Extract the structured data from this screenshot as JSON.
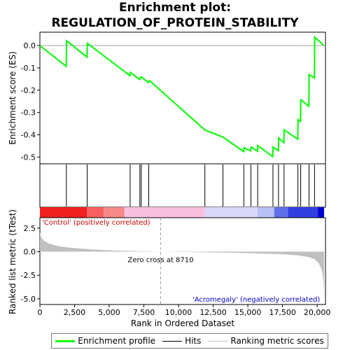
{
  "title_line1": "Enrichment plot:",
  "title_line2": "REGULATION_OF_PROTEIN_STABILITY",
  "colors": {
    "enrichment": "#00ff00",
    "hits": "#000000",
    "ranking": "#c0c0c0",
    "pos_label": "#cc0000",
    "neg_label": "#0000cc",
    "zero_line": "#a0a0a0"
  },
  "legend": [
    {
      "label": "Enrichment profile",
      "color": "#00ff00"
    },
    {
      "label": "Hits",
      "color": "#000000"
    },
    {
      "label": "Ranking metric scores",
      "color": "#c0c0c0"
    }
  ],
  "chart_data": [
    {
      "type": "line",
      "ylabel": "Enrichment score (ES)",
      "ylim": [
        -0.53,
        0.06
      ],
      "yticks": [
        0.0,
        -0.1,
        -0.2,
        -0.3,
        -0.4,
        -0.5
      ],
      "ytick_labels": [
        "0.0",
        "-0.1",
        "-0.2",
        "-0.3",
        "-0.4",
        "-0.5"
      ],
      "xlim": [
        0,
        20600
      ],
      "points": [
        [
          0,
          0.0
        ],
        [
          1900,
          -0.093
        ],
        [
          1920,
          0.022
        ],
        [
          3400,
          -0.052
        ],
        [
          3420,
          0.01
        ],
        [
          6500,
          -0.135
        ],
        [
          6520,
          -0.12
        ],
        [
          7200,
          -0.152
        ],
        [
          7300,
          -0.14
        ],
        [
          7800,
          -0.165
        ],
        [
          7900,
          -0.157
        ],
        [
          11900,
          -0.378
        ],
        [
          13200,
          -0.41
        ],
        [
          14700,
          -0.475
        ],
        [
          14720,
          -0.458
        ],
        [
          15200,
          -0.472
        ],
        [
          15250,
          -0.455
        ],
        [
          15700,
          -0.474
        ],
        [
          15720,
          -0.448
        ],
        [
          16800,
          -0.498
        ],
        [
          16820,
          -0.455
        ],
        [
          17200,
          -0.47
        ],
        [
          17220,
          -0.415
        ],
        [
          17600,
          -0.435
        ],
        [
          17620,
          -0.378
        ],
        [
          18600,
          -0.42
        ],
        [
          18620,
          -0.332
        ],
        [
          18800,
          -0.34
        ],
        [
          18820,
          -0.243
        ],
        [
          19400,
          -0.272
        ],
        [
          19420,
          -0.13
        ],
        [
          19800,
          -0.145
        ],
        [
          19820,
          0.038
        ],
        [
          20500,
          0.0
        ]
      ]
    },
    {
      "type": "hits",
      "positions": [
        1910,
        3410,
        6510,
        7210,
        7310,
        7850,
        11900,
        13200,
        14710,
        15220,
        15710,
        16810,
        17210,
        17610,
        18610,
        18810,
        19410,
        19810
      ]
    },
    {
      "type": "area",
      "xlabel": "Rank in Ordered Dataset",
      "ylabel": "Ranked list metric (tTest)",
      "ylim": [
        -5.6,
        3.6
      ],
      "yticks": [
        2.5,
        0.0,
        -2.5,
        -5.0
      ],
      "ytick_labels": [
        "2.5",
        "0.0",
        "-2.5",
        "-5.0"
      ],
      "xticks": [
        0,
        2500,
        5000,
        7500,
        10000,
        12500,
        15000,
        17500,
        20000
      ],
      "xtick_labels": [
        "0",
        "2,500",
        "5,000",
        "7,500",
        "10,000",
        "12,500",
        "15,000",
        "17,500",
        "20,000"
      ],
      "zero_cross": 8710,
      "zero_cross_label": "Zero cross at 8710",
      "pos_label": "'Control' (positively correlated)",
      "neg_label": "'Acromegaly' (negatively correlated)",
      "curve": [
        [
          0,
          2.0
        ],
        [
          100,
          1.5
        ],
        [
          300,
          1.15
        ],
        [
          600,
          0.9
        ],
        [
          1000,
          0.7
        ],
        [
          1500,
          0.55
        ],
        [
          2000,
          0.45
        ],
        [
          3000,
          0.32
        ],
        [
          4000,
          0.22
        ],
        [
          5000,
          0.15
        ],
        [
          6000,
          0.1
        ],
        [
          7000,
          0.06
        ],
        [
          8000,
          0.02
        ],
        [
          8710,
          0.0
        ],
        [
          10000,
          -0.03
        ],
        [
          12000,
          -0.07
        ],
        [
          14000,
          -0.12
        ],
        [
          16000,
          -0.2
        ],
        [
          17500,
          -0.28
        ],
        [
          18500,
          -0.38
        ],
        [
          19300,
          -0.55
        ],
        [
          19800,
          -0.8
        ],
        [
          20100,
          -1.2
        ],
        [
          20300,
          -1.8
        ],
        [
          20420,
          -2.6
        ],
        [
          20480,
          -3.6
        ],
        [
          20500,
          -5.3
        ]
      ]
    }
  ]
}
